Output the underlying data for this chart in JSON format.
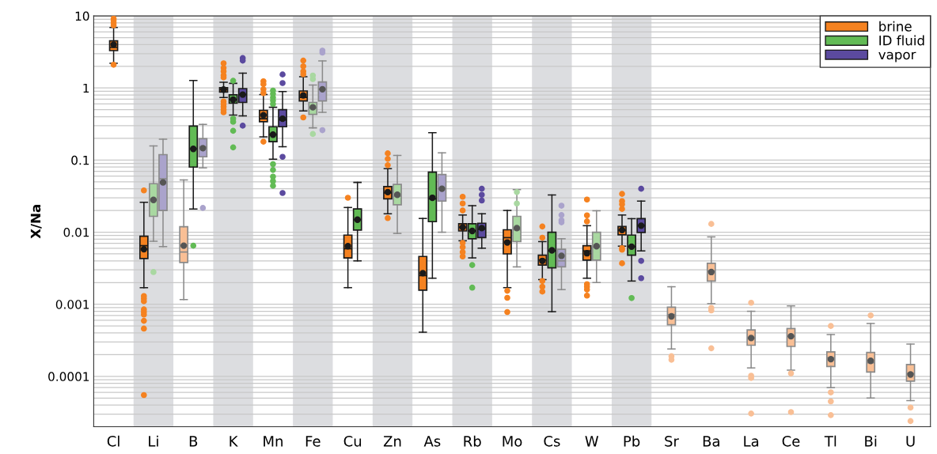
{
  "chart_data": {
    "type": "box",
    "ylabel": "X/Na",
    "log": "y",
    "ylim": [
      2e-05,
      10
    ],
    "yticks": [
      0.0001,
      0.001,
      0.01,
      0.1,
      1,
      10
    ],
    "grid": "y",
    "legend": "top right",
    "categories": [
      "Cl",
      "Li",
      "B",
      "K",
      "Mn",
      "Fe",
      "Cu",
      "Zn",
      "As",
      "Rb",
      "Mo",
      "Cs",
      "W",
      "Pb",
      "Sr",
      "Ba",
      "La",
      "Ce",
      "Tl",
      "Bi",
      "U"
    ],
    "bands": [
      {
        "axis": "x",
        "from": "Li",
        "to": "Li",
        "color": "#dcdde0"
      },
      {
        "axis": "x",
        "from": "K",
        "to": "K",
        "color": "#dcdde0"
      },
      {
        "axis": "x",
        "from": "Fe",
        "to": "Fe",
        "color": "#dcdde0"
      },
      {
        "axis": "x",
        "from": "Zn",
        "to": "Zn",
        "color": "#dcdde0"
      },
      {
        "axis": "x",
        "from": "Rb",
        "to": "Rb",
        "color": "#dcdde0"
      },
      {
        "axis": "x",
        "from": "Cs",
        "to": "Cs",
        "color": "#dcdde0"
      },
      {
        "axis": "x",
        "from": "Pb",
        "to": "Pb",
        "color": "#dcdde0"
      }
    ],
    "series": [
      {
        "name": "brine",
        "color": "#f58220",
        "colors": [
          "#f58220",
          "#f58220",
          "#f9bf95",
          "#f58220",
          "#f58220",
          "#f58220",
          "#f58220",
          "#f58220",
          "#f58220",
          "#f58220",
          "#f58220",
          "#f58220",
          "#f58220",
          "#f58220",
          "#f9bf95",
          "#f9bf95",
          "#f9bf95",
          "#f9bf95",
          "#f9bf95",
          "#f9bf95",
          "#f9bf95"
        ],
        "boxes": [
          {
            "low": 2.2,
            "q1": 3.3,
            "median": 3.65,
            "q3": 4.5,
            "high": 6.9,
            "mean": 4.0,
            "outliers": [
              9.2,
              8.6,
              8.0,
              7.4,
              2.1
            ]
          },
          {
            "low": 0.0017,
            "q1": 0.0043,
            "median": 0.0065,
            "q3": 0.0088,
            "high": 0.026,
            "mean": 0.0058,
            "outliers": [
              0.038,
              0.0013,
              0.0012,
              0.0011,
              0.00085,
              0.00078,
              0.00072,
              0.00059,
              0.00046,
              5.5e-05
            ]
          },
          {
            "low": 0.00116,
            "q1": 0.0038,
            "median": 0.0053,
            "q3": 0.0119,
            "high": 0.053,
            "mean": 0.0065
          },
          {
            "low": 0.74,
            "q1": 0.88,
            "median": 0.95,
            "q3": 1.01,
            "high": 1.2,
            "mean": 0.95,
            "outliers": [
              2.2,
              1.9,
              1.7,
              1.5,
              1.4,
              0.65,
              0.6,
              0.55,
              0.5,
              0.46
            ]
          },
          {
            "low": 0.21,
            "q1": 0.34,
            "median": 0.375,
            "q3": 0.49,
            "high": 0.81,
            "mean": 0.42,
            "outliers": [
              1.24,
              1.13,
              0.96,
              0.85,
              0.18
            ]
          },
          {
            "low": 0.48,
            "q1": 0.66,
            "median": 0.74,
            "q3": 0.91,
            "high": 1.43,
            "mean": 0.79,
            "outliers": [
              2.4,
              2.0,
              1.7,
              1.55,
              0.39
            ]
          },
          {
            "low": 0.0017,
            "q1": 0.0044,
            "median": 0.0059,
            "q3": 0.0091,
            "high": 0.022,
            "mean": 0.0064,
            "outliers": [
              0.03
            ]
          },
          {
            "low": 0.018,
            "q1": 0.029,
            "median": 0.035,
            "q3": 0.043,
            "high": 0.076,
            "mean": 0.036,
            "outliers": [
              0.124,
              0.104,
              0.085,
              0.0157
            ]
          },
          {
            "low": 0.00041,
            "q1": 0.00157,
            "median": 0.0025,
            "q3": 0.0046,
            "high": 0.0155,
            "mean": 0.0027
          },
          {
            "low": 0.0076,
            "q1": 0.0104,
            "median": 0.0117,
            "q3": 0.0131,
            "high": 0.0173,
            "mean": 0.0117,
            "outliers": [
              0.031,
              0.025,
              0.02,
              0.0071,
              0.0062,
              0.0053,
              0.0046
            ]
          },
          {
            "low": 0.0017,
            "q1": 0.005,
            "median": 0.0084,
            "q3": 0.0108,
            "high": 0.02,
            "mean": 0.0072,
            "outliers": [
              0.00154,
              0.00123,
              0.00078
            ]
          },
          {
            "low": 0.0022,
            "q1": 0.0035,
            "median": 0.0041,
            "q3": 0.0048,
            "high": 0.0074,
            "mean": 0.004,
            "outliers": [
              0.012,
              0.0084,
              0.0021,
              0.00175,
              0.0015
            ]
          },
          {
            "low": 0.0023,
            "q1": 0.0041,
            "median": 0.0055,
            "q3": 0.0065,
            "high": 0.0123,
            "mean": 0.0051,
            "outliers": [
              0.0284,
              0.0171,
              0.0141,
              0.0019,
              0.00175,
              0.0016,
              0.00132
            ]
          },
          {
            "low": 0.0064,
            "q1": 0.0092,
            "median": 0.0106,
            "q3": 0.012,
            "high": 0.0173,
            "mean": 0.0107,
            "outliers": [
              0.034,
              0.027,
              0.0244,
              0.021,
              0.006,
              0.0057,
              0.0037
            ]
          },
          {
            "low": 0.00024,
            "q1": 0.00052,
            "median": 0.00072,
            "q3": 0.00091,
            "high": 0.00175,
            "mean": 0.00068,
            "outliers": [
              0.00019,
              0.00017
            ]
          },
          {
            "low": 0.00102,
            "q1": 0.0021,
            "median": 0.0029,
            "q3": 0.0037,
            "high": 0.0086,
            "mean": 0.0028,
            "outliers": [
              0.013,
              0.00089,
              0.00082,
              0.000245
            ]
          },
          {
            "low": 0.000131,
            "q1": 0.00027,
            "median": 0.00034,
            "q3": 0.00044,
            "high": 0.0008,
            "mean": 0.00034,
            "outliers": [
              0.00105,
              0.000102,
              9.5e-05,
              3.05e-05
            ]
          },
          {
            "low": 0.000122,
            "q1": 0.00026,
            "median": 0.00036,
            "q3": 0.00046,
            "high": 0.00095,
            "mean": 0.00036,
            "outliers": [
              0.00011,
              3.2e-05
            ]
          },
          {
            "low": 7e-05,
            "q1": 0.000137,
            "median": 0.000181,
            "q3": 0.000219,
            "high": 0.00038,
            "mean": 0.000173,
            "outliers": [
              0.0005,
              6e-05,
              4.5e-05,
              2.9e-05
            ]
          },
          {
            "low": 5e-05,
            "q1": 0.000115,
            "median": 0.000154,
            "q3": 0.000215,
            "high": 0.00054,
            "mean": 0.000164,
            "outliers": [
              0.0007
            ]
          },
          {
            "low": 4.6e-05,
            "q1": 8.6e-05,
            "median": 0.000109,
            "q3": 0.000146,
            "high": 0.00028,
            "mean": 0.000106,
            "outliers": [
              3.7e-05,
              2.4e-05
            ]
          }
        ]
      },
      {
        "name": "ID fluid",
        "color": "#62bb55",
        "colors": [
          null,
          "#a9d8a1",
          "#62bb55",
          "#62bb55",
          "#62bb55",
          "#a9d8a1",
          "#62bb55",
          "#a9d8a1",
          "#62bb55",
          "#62bb55",
          "#a9d8a1",
          "#62bb55",
          "#a9d8a1",
          "#62bb55",
          null,
          null,
          null,
          null,
          null,
          null,
          null
        ],
        "boxes": [
          null,
          {
            "low": 0.0075,
            "q1": 0.0166,
            "median": 0.028,
            "q3": 0.047,
            "high": 0.157,
            "mean": 0.028,
            "outliers": [
              0.0028
            ]
          },
          {
            "low": 0.021,
            "q1": 0.08,
            "median": 0.143,
            "q3": 0.297,
            "high": 1.27,
            "mean": 0.143,
            "outliers": [
              0.0065
            ]
          },
          {
            "low": 0.42,
            "q1": 0.615,
            "median": 0.69,
            "q3": 0.805,
            "high": 1.16,
            "mean": 0.69,
            "outliers": [
              1.26,
              0.375,
              0.34,
              0.255,
              0.15
            ]
          },
          {
            "low": 0.103,
            "q1": 0.18,
            "median": 0.225,
            "q3": 0.29,
            "high": 0.54,
            "mean": 0.225,
            "outliers": [
              0.92,
              0.83,
              0.74,
              0.67,
              0.6,
              0.088,
              0.073,
              0.059,
              0.051,
              0.044
            ]
          },
          {
            "low": 0.28,
            "q1": 0.43,
            "median": 0.53,
            "q3": 0.63,
            "high": 1.1,
            "mean": 0.54,
            "outliers": [
              1.49,
              1.33,
              0.23
            ]
          },
          {
            "low": 0.004,
            "q1": 0.0107,
            "median": 0.0149,
            "q3": 0.021,
            "high": 0.049,
            "mean": 0.0149
          },
          {
            "low": 0.0096,
            "q1": 0.024,
            "median": 0.0316,
            "q3": 0.046,
            "high": 0.116,
            "mean": 0.033
          },
          {
            "low": 0.0023,
            "q1": 0.014,
            "median": 0.029,
            "q3": 0.068,
            "high": 0.24,
            "mean": 0.03
          },
          {
            "low": 0.0044,
            "q1": 0.0081,
            "median": 0.0104,
            "q3": 0.0131,
            "high": 0.0233,
            "mean": 0.0104,
            "outliers": [
              0.0035,
              0.0017
            ]
          },
          {
            "low": 0.0033,
            "q1": 0.0074,
            "median": 0.0108,
            "q3": 0.0166,
            "high": 0.039,
            "mean": 0.0114,
            "outliers": [
              0.036,
              0.025
            ]
          },
          {
            "low": 0.00079,
            "q1": 0.0032,
            "median": 0.0055,
            "q3": 0.01,
            "high": 0.0328,
            "mean": 0.0056
          },
          {
            "low": 0.002,
            "q1": 0.0041,
            "median": 0.0062,
            "q3": 0.01,
            "high": 0.0198,
            "mean": 0.0064
          },
          {
            "low": 0.0021,
            "q1": 0.0048,
            "median": 0.0063,
            "q3": 0.0091,
            "high": 0.0154,
            "mean": 0.0063,
            "outliers": [
              0.00122
            ]
          },
          null,
          null,
          null,
          null,
          null,
          null,
          null
        ]
      },
      {
        "name": "vapor",
        "color": "#5b4a9f",
        "colors": [
          null,
          "#aaa3cc",
          "#aaa3cc",
          "#5b4a9f",
          "#5b4a9f",
          "#aaa3cc",
          null,
          null,
          "#aaa3cc",
          "#5b4a9f",
          null,
          "#aaa3cc",
          null,
          "#5b4a9f",
          null,
          null,
          null,
          null,
          null,
          null,
          null
        ],
        "boxes": [
          null,
          {
            "low": 0.0063,
            "q1": 0.02,
            "median": 0.055,
            "q3": 0.119,
            "high": 0.195,
            "mean": 0.049
          },
          {
            "low": 0.078,
            "q1": 0.111,
            "median": 0.153,
            "q3": 0.198,
            "high": 0.313,
            "mean": 0.146,
            "outliers": [
              0.0217
            ]
          },
          {
            "low": 0.41,
            "q1": 0.63,
            "median": 0.81,
            "q3": 0.98,
            "high": 1.61,
            "mean": 0.81,
            "outliers": [
              2.6,
              2.4,
              0.3
            ]
          },
          {
            "low": 0.153,
            "q1": 0.29,
            "median": 0.36,
            "q3": 0.5,
            "high": 0.89,
            "mean": 0.375,
            "outliers": [
              1.54,
              1.17,
              0.111,
              0.035
            ]
          },
          {
            "low": 0.46,
            "q1": 0.66,
            "median": 0.96,
            "q3": 1.21,
            "high": 2.37,
            "mean": 0.96,
            "outliers": [
              3.3,
              3.1,
              0.26
            ]
          },
          null,
          null,
          {
            "low": 0.01,
            "q1": 0.027,
            "median": 0.04,
            "q3": 0.063,
            "high": 0.126,
            "mean": 0.04
          },
          {
            "low": 0.006,
            "q1": 0.0084,
            "median": 0.011,
            "q3": 0.0133,
            "high": 0.018,
            "mean": 0.0114,
            "outliers": [
              0.04,
              0.033,
              0.0275
            ]
          },
          null,
          {
            "low": 0.0016,
            "q1": 0.0033,
            "median": 0.004,
            "q3": 0.0058,
            "high": 0.0081,
            "mean": 0.0047,
            "outliers": [
              0.0233,
              0.0173,
              0.0146,
              0.0137
            ]
          },
          null,
          {
            "low": 0.0055,
            "q1": 0.0099,
            "median": 0.0123,
            "q3": 0.0154,
            "high": 0.027,
            "mean": 0.0123,
            "outliers": [
              0.04,
              0.004,
              0.0023
            ]
          },
          null,
          null,
          null,
          null,
          null,
          null,
          null
        ]
      }
    ]
  }
}
